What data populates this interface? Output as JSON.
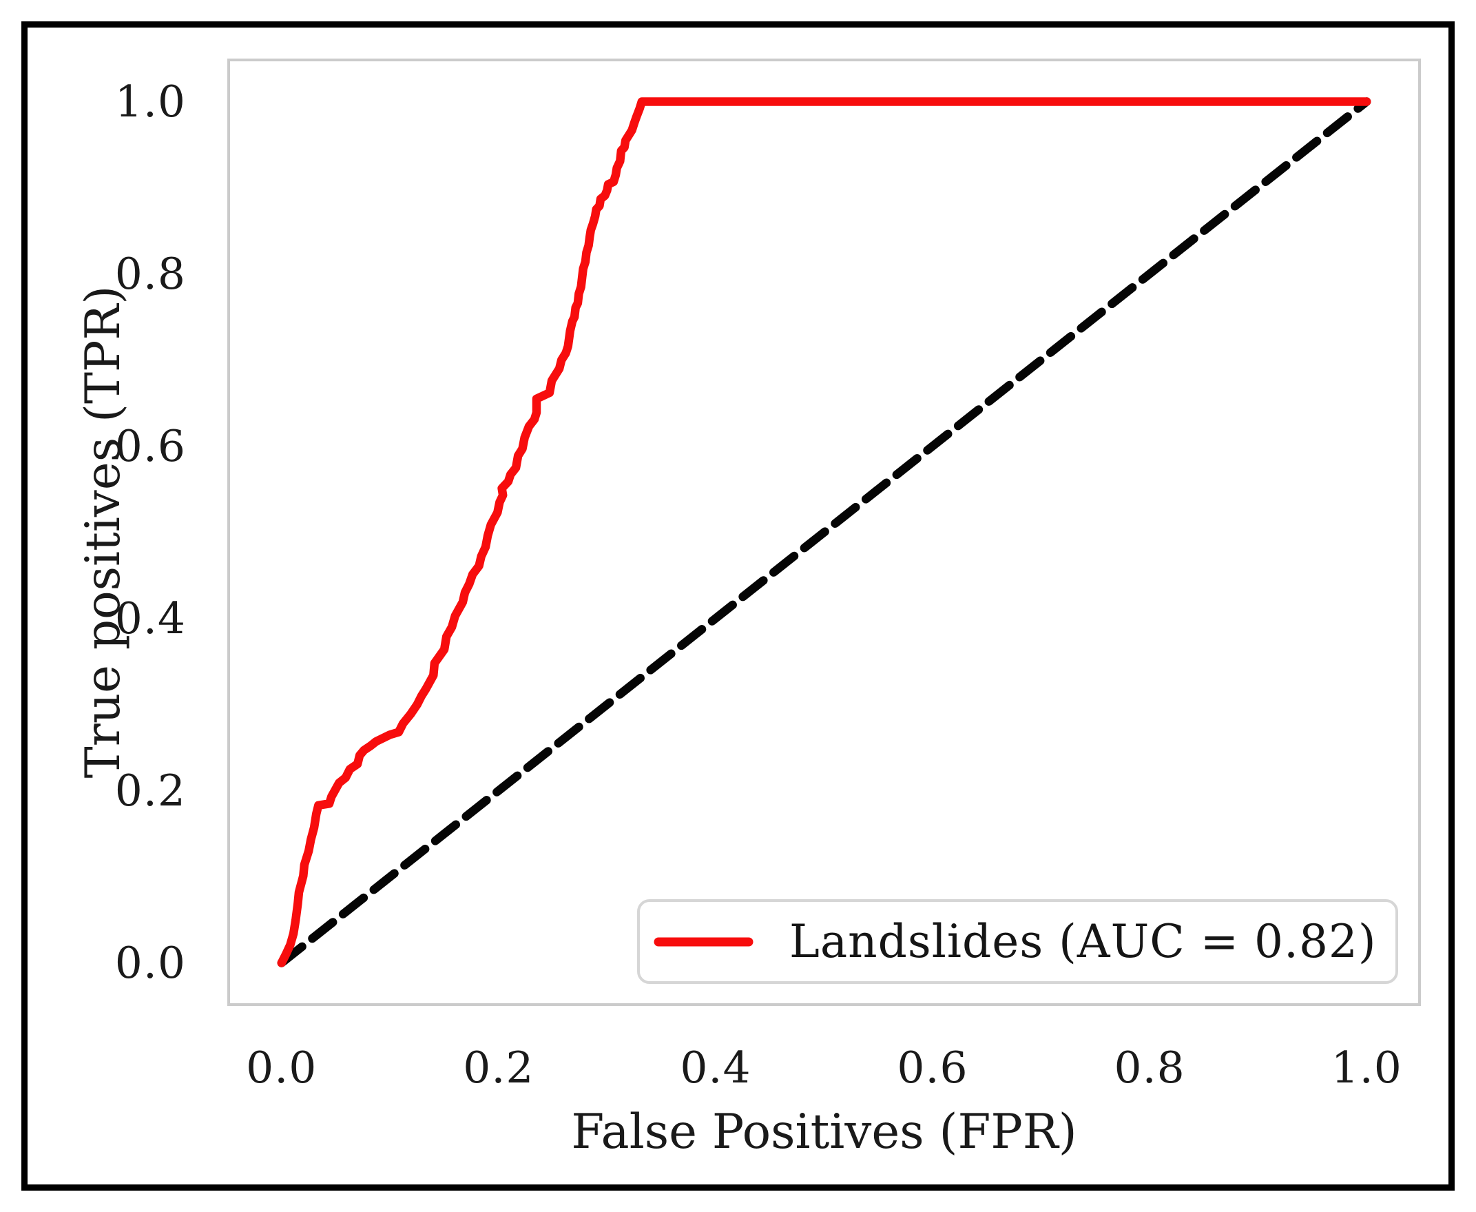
{
  "figure": {
    "background": "#ffffff",
    "frame_color": "#000000"
  },
  "axes": {
    "xlabel": "False Positives (FPR)",
    "ylabel": "True positives (TPR)",
    "x_tick_labels": [
      "0.0",
      "0.2",
      "0.4",
      "0.6",
      "0.8",
      "1.0"
    ],
    "y_tick_labels": [
      "0.0",
      "0.2",
      "0.4",
      "0.6",
      "0.8",
      "1.0"
    ],
    "spine_color": "#cbcbcb",
    "text_color": "#1a1a1a"
  },
  "legend": {
    "position": "lower right",
    "border_color": "#d6d6d6",
    "entries": [
      {
        "label": "Landslides (AUC = 0.82)",
        "color": "#f70d0d",
        "line_style": "solid"
      }
    ]
  },
  "chart_data": {
    "type": "line",
    "title": "",
    "xlabel": "False Positives (FPR)",
    "ylabel": "True positives (TPR)",
    "xlim": [
      -0.05,
      1.05
    ],
    "ylim": [
      -0.05,
      1.05
    ],
    "x_ticks": [
      0.0,
      0.2,
      0.4,
      0.6,
      0.8,
      1.0
    ],
    "y_ticks": [
      0.0,
      0.2,
      0.4,
      0.6,
      0.8,
      1.0
    ],
    "grid": false,
    "legend_position": "lower right",
    "series": [
      {
        "name": "chance diagonal",
        "color": "#050505",
        "line_style": "dashed",
        "line_width": 12.5,
        "points": [
          [
            0.0,
            0.0
          ],
          [
            1.0,
            1.0
          ]
        ]
      },
      {
        "name": "Landslides (AUC = 0.82)",
        "auc": 0.82,
        "color": "#f70d0d",
        "line_style": "solid",
        "line_width": 12.5,
        "points": [
          [
            0.0,
            0.0
          ],
          [
            0.004,
            0.01
          ],
          [
            0.008,
            0.021
          ],
          [
            0.011,
            0.034
          ],
          [
            0.013,
            0.05
          ],
          [
            0.015,
            0.069
          ],
          [
            0.016,
            0.082
          ],
          [
            0.02,
            0.101
          ],
          [
            0.021,
            0.114
          ],
          [
            0.025,
            0.13
          ],
          [
            0.027,
            0.143
          ],
          [
            0.03,
            0.157
          ],
          [
            0.032,
            0.173
          ],
          [
            0.034,
            0.183
          ],
          [
            0.044,
            0.185
          ],
          [
            0.046,
            0.193
          ],
          [
            0.053,
            0.209
          ],
          [
            0.059,
            0.215
          ],
          [
            0.063,
            0.225
          ],
          [
            0.07,
            0.231
          ],
          [
            0.072,
            0.241
          ],
          [
            0.076,
            0.247
          ],
          [
            0.082,
            0.252
          ],
          [
            0.087,
            0.257
          ],
          [
            0.1,
            0.265
          ],
          [
            0.108,
            0.268
          ],
          [
            0.112,
            0.278
          ],
          [
            0.119,
            0.289
          ],
          [
            0.125,
            0.3
          ],
          [
            0.129,
            0.31
          ],
          [
            0.133,
            0.318
          ],
          [
            0.14,
            0.334
          ],
          [
            0.141,
            0.348
          ],
          [
            0.15,
            0.364
          ],
          [
            0.152,
            0.379
          ],
          [
            0.157,
            0.39
          ],
          [
            0.16,
            0.403
          ],
          [
            0.167,
            0.419
          ],
          [
            0.169,
            0.43
          ],
          [
            0.173,
            0.44
          ],
          [
            0.176,
            0.451
          ],
          [
            0.182,
            0.461
          ],
          [
            0.184,
            0.472
          ],
          [
            0.188,
            0.483
          ],
          [
            0.19,
            0.496
          ],
          [
            0.193,
            0.509
          ],
          [
            0.199,
            0.523
          ],
          [
            0.201,
            0.535
          ],
          [
            0.204,
            0.543
          ],
          [
            0.203,
            0.551
          ],
          [
            0.209,
            0.559
          ],
          [
            0.211,
            0.567
          ],
          [
            0.216,
            0.575
          ],
          [
            0.218,
            0.589
          ],
          [
            0.222,
            0.597
          ],
          [
            0.224,
            0.61
          ],
          [
            0.228,
            0.623
          ],
          [
            0.233,
            0.631
          ],
          [
            0.235,
            0.639
          ],
          [
            0.235,
            0.655
          ],
          [
            0.247,
            0.662
          ],
          [
            0.249,
            0.676
          ],
          [
            0.256,
            0.69
          ],
          [
            0.258,
            0.7
          ],
          [
            0.262,
            0.708
          ],
          [
            0.264,
            0.716
          ],
          [
            0.266,
            0.734
          ],
          [
            0.268,
            0.745
          ],
          [
            0.27,
            0.75
          ],
          [
            0.271,
            0.761
          ],
          [
            0.273,
            0.766
          ],
          [
            0.274,
            0.777
          ],
          [
            0.276,
            0.785
          ],
          [
            0.277,
            0.796
          ],
          [
            0.278,
            0.806
          ],
          [
            0.28,
            0.814
          ],
          [
            0.281,
            0.825
          ],
          [
            0.283,
            0.833
          ],
          [
            0.284,
            0.843
          ],
          [
            0.285,
            0.851
          ],
          [
            0.287,
            0.858
          ],
          [
            0.289,
            0.867
          ],
          [
            0.29,
            0.875
          ],
          [
            0.293,
            0.879
          ],
          [
            0.294,
            0.887
          ],
          [
            0.298,
            0.891
          ],
          [
            0.3,
            0.897
          ],
          [
            0.301,
            0.904
          ],
          [
            0.306,
            0.907
          ],
          [
            0.308,
            0.915
          ],
          [
            0.309,
            0.923
          ],
          [
            0.312,
            0.931
          ],
          [
            0.313,
            0.943
          ],
          [
            0.316,
            0.947
          ],
          [
            0.317,
            0.955
          ],
          [
            0.321,
            0.963
          ],
          [
            0.323,
            0.967
          ],
          [
            0.325,
            0.975
          ],
          [
            0.327,
            0.982
          ],
          [
            0.33,
            0.992
          ],
          [
            0.332,
            1.0
          ],
          [
            1.0,
            1.0
          ]
        ]
      }
    ]
  }
}
